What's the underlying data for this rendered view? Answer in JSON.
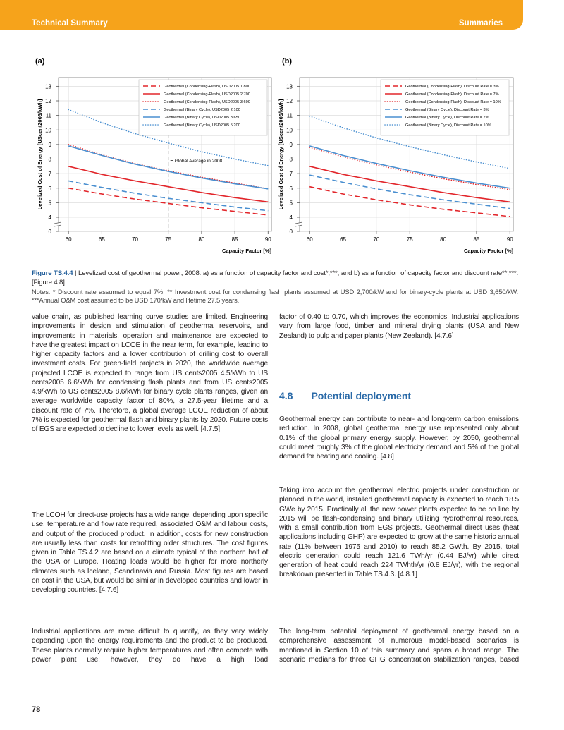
{
  "header": {
    "left": "Technical Summary",
    "right": "Summaries"
  },
  "chart_data": [
    {
      "type": "line",
      "panel": "(a)",
      "y_label": "Levelized Cost of Energy [UScent2005/kWh]",
      "x_label": "Capacity Factor [%]",
      "x": [
        60,
        65,
        70,
        75,
        80,
        85,
        90
      ],
      "xlim": [
        58.5,
        90.5
      ],
      "xticks": [
        60,
        65,
        70,
        75,
        80,
        85,
        90
      ],
      "ylim": [
        0,
        13.6
      ],
      "yticks": [
        0,
        4,
        5,
        6,
        7,
        8,
        9,
        10,
        11,
        12,
        13
      ],
      "y_axis_break": true,
      "grid": true,
      "legend": "upper right",
      "annotation": {
        "text": "Global Average in 2008",
        "x": 75,
        "y": 7.9
      },
      "series": [
        {
          "name": "Geothermal (Condensing-Flash), USD2005 1,800",
          "color": "#e2262b",
          "style": "dashed",
          "values": [
            6.0,
            5.6,
            5.25,
            4.95,
            4.65,
            4.4,
            4.15
          ]
        },
        {
          "name": "Geothermal (Condensing-Flash), USD2005 2,700",
          "color": "#e2262b",
          "style": "solid",
          "values": [
            7.5,
            6.95,
            6.5,
            6.1,
            5.7,
            5.35,
            5.05
          ]
        },
        {
          "name": "Geothermal (Condensing-Flash), USD2005 3,600",
          "color": "#e2262b",
          "style": "dotted",
          "values": [
            9.0,
            8.3,
            7.7,
            7.2,
            6.75,
            6.35,
            5.95
          ]
        },
        {
          "name": "Geothermal (Binary Cycle), USD2005 2,100",
          "color": "#4a8fd0",
          "style": "dashed",
          "values": [
            6.5,
            6.05,
            5.65,
            5.3,
            5.0,
            4.7,
            4.45
          ]
        },
        {
          "name": "Geothermal (Binary Cycle), USD2005 3,650",
          "color": "#4a8fd0",
          "style": "solid",
          "values": [
            8.9,
            8.25,
            7.65,
            7.15,
            6.7,
            6.3,
            5.95
          ]
        },
        {
          "name": "Geothermal (Binary Cycle), USD2005 5,200",
          "color": "#4a8fd0",
          "style": "dotted",
          "values": [
            11.4,
            10.5,
            9.75,
            9.1,
            8.5,
            8.0,
            7.55
          ]
        }
      ]
    },
    {
      "type": "line",
      "panel": "(b)",
      "y_label": "Levelized Cost of Energy [UScent2005/kWh]",
      "x_label": "Capacity Factor [%]",
      "x": [
        60,
        65,
        70,
        75,
        80,
        85,
        90
      ],
      "xlim": [
        58.5,
        90.5
      ],
      "xticks": [
        60,
        65,
        70,
        75,
        80,
        85,
        90
      ],
      "ylim": [
        0,
        13.6
      ],
      "yticks": [
        0,
        4,
        5,
        6,
        7,
        8,
        9,
        10,
        11,
        12,
        13
      ],
      "y_axis_break": true,
      "grid": true,
      "legend": "upper right",
      "series": [
        {
          "name": "Geothermal (Condensing-Flash), Discount Rate = 3%",
          "color": "#e2262b",
          "style": "dashed",
          "values": [
            6.1,
            5.6,
            5.2,
            4.85,
            4.55,
            4.3,
            4.05
          ]
        },
        {
          "name": "Geothermal (Condensing-Flash), Discount Rate = 7%",
          "color": "#e2262b",
          "style": "solid",
          "values": [
            7.5,
            6.95,
            6.5,
            6.1,
            5.7,
            5.35,
            5.05
          ]
        },
        {
          "name": "Geothermal (Condensing-Flash), Discount Rate = 10%",
          "color": "#e2262b",
          "style": "dotted",
          "values": [
            8.8,
            8.15,
            7.6,
            7.1,
            6.65,
            6.25,
            5.9
          ]
        },
        {
          "name": "Geothermal (Binary Cycle), Discount Rate = 3%",
          "color": "#4a8fd0",
          "style": "dashed",
          "values": [
            6.9,
            6.4,
            5.95,
            5.55,
            5.2,
            4.9,
            4.6
          ]
        },
        {
          "name": "Geothermal (Binary Cycle), Discount Rate = 7%",
          "color": "#4a8fd0",
          "style": "solid",
          "values": [
            8.9,
            8.25,
            7.7,
            7.2,
            6.75,
            6.35,
            6.0
          ]
        },
        {
          "name": "Geothermal (Binary Cycle), Discount Rate = 10%",
          "color": "#4a8fd0",
          "style": "dotted",
          "values": [
            10.95,
            10.15,
            9.45,
            8.85,
            8.3,
            7.8,
            7.35
          ]
        }
      ]
    }
  ],
  "caption": {
    "label": "Figure TS.4.4",
    "text": "| Levelized cost of geothermal power, 2008: a) as a function of capacity factor and cost*,***; and b) as a function of capacity factor and discount rate**,***. [Figure 4.8]"
  },
  "notes": "Notes: * Discount rate assumed to equal 7%. ** Investment cost for condensing flash plants assumed at USD 2,700/kW and for binary-cycle plants at USD 3,650/kW. ***Annual O&M cost assumed to be USD 170/kW and lifetime 27.5 years.",
  "left_column": [
    "value chain, as published learning curve studies are limited. Engineering improvements in design and stimulation of geothermal reservoirs, and improvements in materials, operation and maintenance are expected to have the greatest impact on LCOE in the near term, for example, leading to higher capacity factors and a lower contribution of drilling cost to overall investment costs. For green-field projects in 2020, the worldwide average projected LCOE is expected to range from US cents2005 4.5/kWh to US cents2005 6.6/kWh for condensing flash plants and from US cents2005 4.9/kWh to US cents2005 8.6/kWh for binary cycle plants ranges, given an average worldwide capacity factor of 80%, a 27.5-year lifetime and a discount rate of 7%. Therefore, a global average LCOE reduction of about 7% is expected for geothermal flash and binary plants by 2020. Future costs of EGS are expected to decline to lower levels as well. [4.7.5]",
    "The LCOH for direct-use projects has a wide range, depending upon specific use, temperature and flow rate required, associated O&M and labour costs, and output of the produced product. In addition, costs for new construction are usually less than costs for retrofitting older structures. The cost figures given in Table TS.4.2 are based on a climate typical of the northern half of the USA or Europe. Heating loads would be higher for more northerly climates such as Iceland, Scandinavia and Russia. Most figures are based on cost in the USA, but would be similar in developed countries and lower in developing countries. [4.7.6]",
    "Industrial applications are more difficult to quantify, as they vary widely depending upon the energy requirements and the product to be produced. These plants normally require higher temperatures and often compete with power plant use; however, they do have a high load"
  ],
  "right_column": {
    "intro": "factor of 0.40 to 0.70, which improves the economics. Industrial applications vary from large food, timber and mineral drying plants (USA and New Zealand) to pulp and paper plants (New Zealand). [4.7.6]",
    "section_number": "4.8",
    "section_title": "Potential deployment",
    "paragraphs": [
      "Geothermal energy can contribute to near- and long-term carbon emissions reduction. In 2008, global geothermal energy use represented only about 0.1% of the global primary energy supply. However, by 2050, geothermal could meet roughly 3% of the global electricity demand and 5% of the global demand for heating and cooling. [4.8]",
      "Taking into account the geothermal electric projects under construction or planned in the world, installed geothermal capacity is expected to reach 18.5 GWe by 2015. Practically all the new power plants expected to be on line by 2015 will be flash-condensing and binary utilizing hydrothermal resources, with a small contribution from EGS projects. Geothermal direct uses (heat applications including GHP) are expected to grow at the same historic annual rate (11% between 1975 and 2010) to reach 85.2 GWth. By 2015, total electric generation could reach 121.6 TWh/yr (0.44 EJ/yr) while direct generation of heat could reach 224 TWhth/yr (0.8 EJ/yr), with the regional breakdown presented in Table TS.4.3. [4.8.1]",
      "The long-term potential deployment of geothermal energy based on a comprehensive assessment of numerous model-based scenarios is mentioned in Section 10 of this summary and spans a broad range. The scenario medians for three GHG concentration stabilization ranges, based"
    ]
  },
  "page_number": "78"
}
